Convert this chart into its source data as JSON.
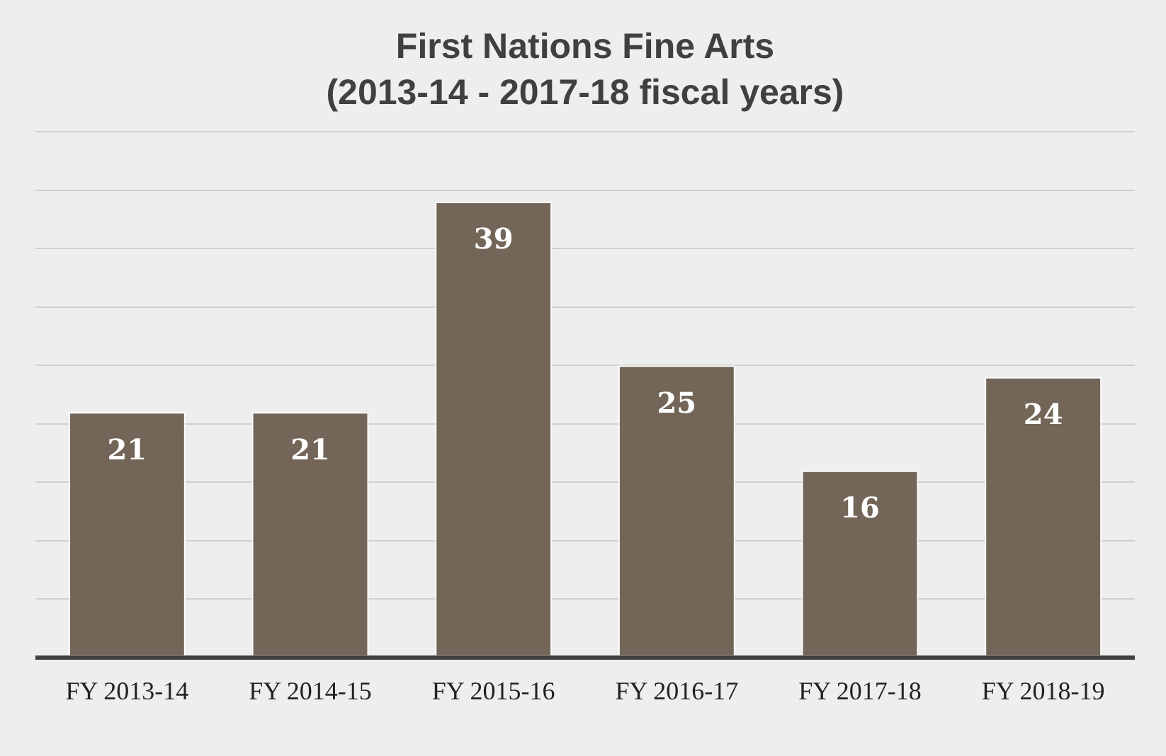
{
  "chart_data": {
    "type": "bar",
    "title": "First Nations Fine Arts\n(2013-14 - 2017-18 fiscal years)",
    "categories": [
      "FY 2013-14",
      "FY 2014-15",
      "FY 2015-16",
      "FY 2016-17",
      "FY 2017-18",
      "FY 2018-19"
    ],
    "values": [
      21,
      21,
      39,
      25,
      16,
      24
    ],
    "color": "#736658",
    "grid": "y",
    "data_labels": true,
    "legend": false
  }
}
